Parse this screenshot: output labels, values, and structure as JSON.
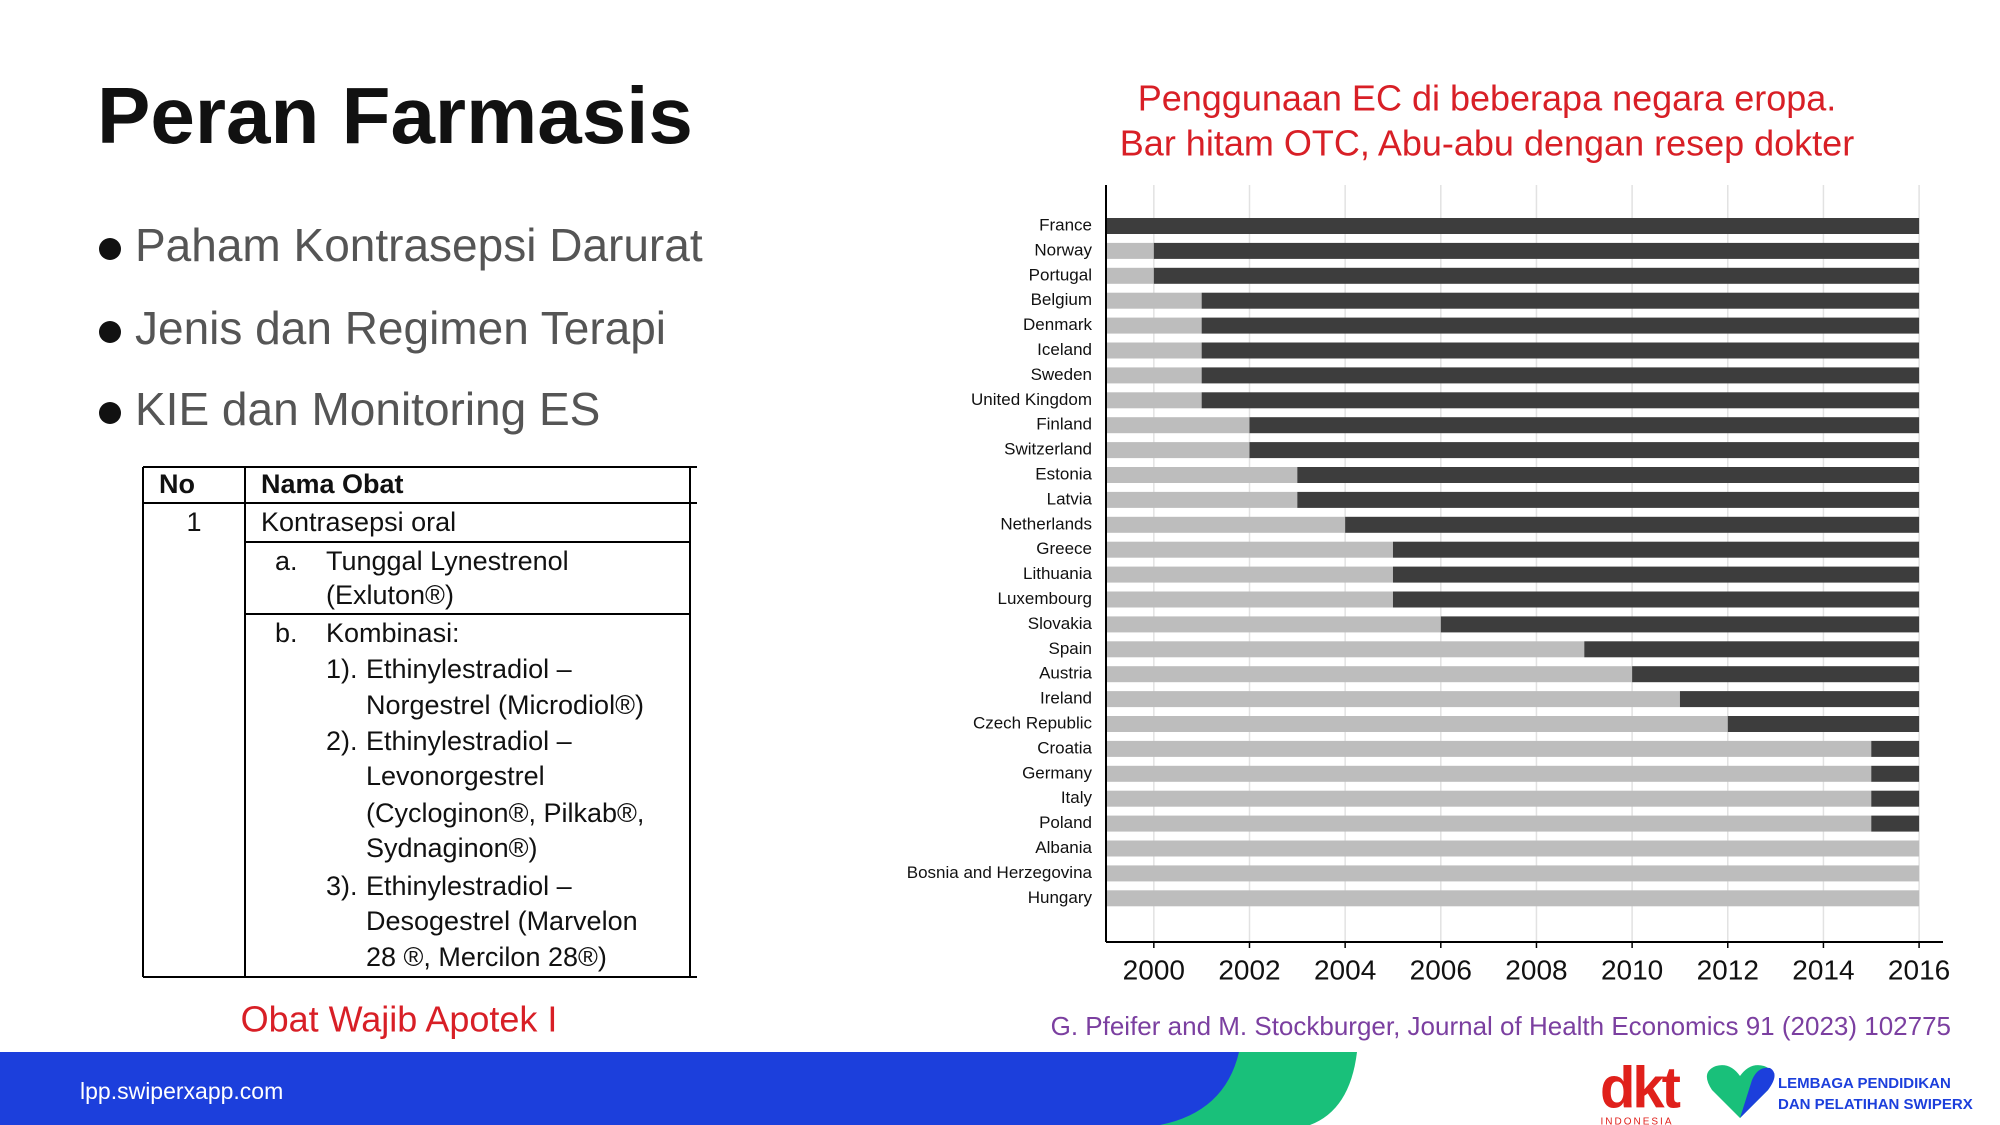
{
  "slide": {
    "title": "Peran Farmasis",
    "bullets": [
      "Paham Kontrasepsi Darurat",
      "Jenis dan Regimen Terapi",
      "KIE dan Monitoring ES"
    ],
    "table_caption": "Obat Wajib Apotek I",
    "citation": "G. Pfeifer and M. Stockburger, Journal of Health Economics 91 (2023) 102775"
  },
  "table": {
    "header": [
      "No",
      "Nama Obat"
    ],
    "rows": [
      {
        "no": "1",
        "name": "Kontrasepsi oral",
        "items": [
          {
            "label": "a.",
            "lines": [
              "Tunggal Lynestrenol",
              "(Exluton®)"
            ]
          },
          {
            "label": "b.",
            "lines": [
              "Kombinasi:"
            ],
            "subitems": [
              {
                "label": "1).",
                "lines": [
                  "Ethinylestradiol –",
                  "Norgestrel (Microdiol®)"
                ]
              },
              {
                "label": "2).",
                "lines": [
                  "Ethinylestradiol –",
                  "Levonorgestrel",
                  "(Cycloginon®, Pilkab®,",
                  "Sydnaginon®)"
                ]
              },
              {
                "label": "3).",
                "lines": [
                  "Ethinylestradiol –",
                  "Desogestrel (Marvelon",
                  "28 ®, Mercilon 28®)"
                ]
              }
            ]
          }
        ]
      }
    ]
  },
  "chart_data": {
    "type": "otc-timeline",
    "title": "Penggunaan EC di beberapa negara eropa.",
    "subtitle": "Bar hitam OTC, Abu-abu dengan resep dokter",
    "categories": [
      "France",
      "Norway",
      "Portugal",
      "Belgium",
      "Denmark",
      "Iceland",
      "Sweden",
      "United Kingdom",
      "Finland",
      "Switzerland",
      "Estonia",
      "Latvia",
      "Netherlands",
      "Greece",
      "Lithuania",
      "Luxembourg",
      "Slovakia",
      "Spain",
      "Austria",
      "Ireland",
      "Czech Republic",
      "Croatia",
      "Germany",
      "Italy",
      "Poland",
      "Albania",
      "Bosnia and Herzegovina",
      "Hungary"
    ],
    "values": [
      1999,
      2000,
      2000,
      2001,
      2001,
      2001,
      2001,
      2001,
      2002,
      2002,
      2003,
      2003,
      2004,
      2005,
      2005,
      2005,
      2006,
      2009,
      2010,
      2011,
      2012,
      2015,
      2015,
      2015,
      2015,
      null,
      null,
      null
    ],
    "otc_color": "#3d3d3d",
    "prescription_color": "#bdbdbd",
    "xlim": [
      1999,
      2016.5
    ],
    "xticks": [
      2000,
      2002,
      2004,
      2006,
      2008,
      2010,
      2012,
      2014,
      2016
    ],
    "grid": true
  },
  "footer": {
    "url": "lpp.swiperxapp.com",
    "brand": "dkt",
    "brand_sub": "INDONESIA",
    "org": [
      "LEMBAGA PENDIDIKAN",
      "DAN PELATIHAN SWIPERX"
    ]
  }
}
